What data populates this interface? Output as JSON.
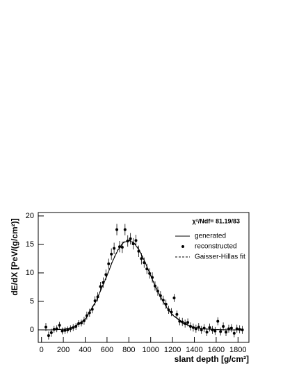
{
  "chart_data": {
    "type": "scatter",
    "ylabel": "dE/dX [PeV/(g/cm²)]",
    "xlabel": "slant depth [g/cm²]",
    "annotation": "χ²/Ndf=  81.19/83",
    "xlim": [
      -30,
      1900
    ],
    "ylim": [
      -2.2,
      20.6
    ],
    "xticks": [
      0,
      200,
      400,
      600,
      800,
      1000,
      1200,
      1400,
      1600,
      1800
    ],
    "yticks": [
      0,
      5,
      10,
      15,
      20
    ],
    "series": [
      {
        "name": "generated",
        "style": "solid",
        "color": "#000000",
        "x": [
          0,
          100,
          200,
          300,
          400,
          500,
          600,
          650,
          700,
          750,
          800,
          850,
          900,
          950,
          1000,
          1050,
          1100,
          1150,
          1200,
          1300,
          1400,
          1500,
          1600,
          1700,
          1850
        ],
        "values": [
          0,
          0,
          0.1,
          0.5,
          1.8,
          5,
          9.5,
          12,
          14,
          15.3,
          15.7,
          15.2,
          13.8,
          11.8,
          9.5,
          7.3,
          5.4,
          3.8,
          2.6,
          1.1,
          0.4,
          0.15,
          0.05,
          0,
          0
        ]
      },
      {
        "name": "reconstructed",
        "style": "points",
        "color": "#000000",
        "x": [
          40,
          65,
          90,
          115,
          140,
          165,
          190,
          215,
          240,
          265,
          290,
          315,
          340,
          365,
          390,
          415,
          440,
          465,
          490,
          515,
          540,
          565,
          590,
          615,
          640,
          665,
          690,
          715,
          740,
          765,
          790,
          815,
          840,
          865,
          890,
          915,
          940,
          965,
          990,
          1015,
          1040,
          1065,
          1090,
          1115,
          1140,
          1165,
          1190,
          1215,
          1240,
          1265,
          1290,
          1315,
          1340,
          1365,
          1390,
          1415,
          1440,
          1465,
          1490,
          1515,
          1540,
          1565,
          1590,
          1615,
          1640,
          1665,
          1690,
          1715,
          1740,
          1765,
          1790,
          1815,
          1840
        ],
        "values": [
          0.5,
          -1.0,
          -0.5,
          0.1,
          0.2,
          0.8,
          -0.2,
          -0.1,
          0.0,
          0.2,
          0.4,
          0.6,
          1.1,
          1.2,
          1.6,
          2.5,
          3.0,
          3.6,
          5.1,
          5.8,
          7.6,
          8.3,
          9.7,
          11.6,
          13.3,
          14.3,
          17.6,
          14.6,
          14.5,
          17.6,
          15.6,
          16.0,
          15.1,
          15.7,
          13.8,
          12.5,
          11.8,
          10.7,
          9.9,
          9.2,
          7.7,
          6.8,
          6.0,
          5.2,
          4.5,
          3.5,
          3.1,
          5.6,
          2.7,
          1.5,
          1.4,
          1.1,
          1.3,
          0.6,
          0.4,
          0.2,
          0.5,
          0.0,
          0.3,
          -0.4,
          0.4,
          0.0,
          -0.2,
          1.5,
          -0.3,
          0.6,
          -0.4,
          0.2,
          0.3,
          -0.6,
          0.2,
          0.1,
          0.0
        ],
        "errors": [
          0.7,
          0.7,
          0.7,
          0.6,
          0.6,
          0.6,
          0.6,
          0.6,
          0.6,
          0.6,
          0.6,
          0.6,
          0.6,
          0.6,
          0.7,
          0.7,
          0.7,
          0.7,
          0.8,
          0.8,
          0.8,
          0.9,
          0.9,
          0.9,
          1.0,
          1.0,
          1.0,
          1.0,
          1.0,
          1.0,
          1.0,
          1.0,
          1.0,
          1.0,
          1.0,
          1.0,
          0.9,
          0.9,
          0.9,
          0.9,
          0.8,
          0.8,
          0.8,
          0.8,
          0.8,
          0.7,
          0.7,
          0.7,
          0.7,
          0.7,
          0.7,
          0.7,
          0.7,
          0.7,
          0.7,
          0.7,
          0.7,
          0.7,
          0.7,
          0.7,
          0.7,
          0.7,
          0.7,
          0.7,
          0.7,
          0.7,
          0.7,
          0.7,
          0.7,
          0.7,
          0.7,
          0.7,
          0.7
        ]
      },
      {
        "name": "Gaisser-Hillas fit",
        "style": "dashed",
        "color": "#000000",
        "x": [
          0,
          100,
          200,
          300,
          400,
          500,
          600,
          650,
          700,
          750,
          800,
          850,
          900,
          950,
          1000,
          1050,
          1100,
          1150,
          1200,
          1300,
          1400,
          1500,
          1600,
          1700,
          1850
        ],
        "values": [
          0,
          0,
          0.1,
          0.5,
          1.9,
          5.1,
          9.6,
          12.1,
          14.1,
          15.4,
          15.8,
          15.3,
          13.9,
          11.9,
          9.6,
          7.4,
          5.5,
          3.9,
          2.7,
          1.2,
          0.45,
          0.15,
          0.05,
          0,
          0
        ]
      }
    ]
  }
}
